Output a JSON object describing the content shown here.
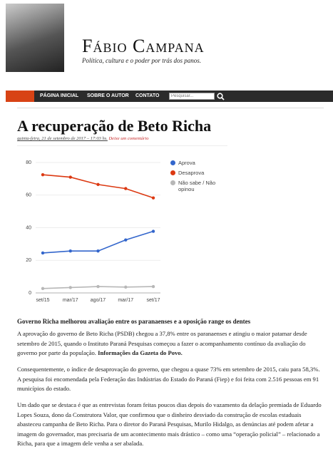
{
  "header": {
    "title": "Fábio Campana",
    "subtitle": "Política, cultura e o poder por trás dos panos."
  },
  "nav": {
    "items": [
      "PÁGINA INICIAL",
      "SOBRE O AUTOR",
      "CONTATO"
    ],
    "search_placeholder": "Pesquisar..."
  },
  "post": {
    "title": "A recuperação de Beto Richa",
    "date": "quinta-feira, 21 de setembro de 2017 – 17:03 hs.",
    "comment_link": "Deixe um comentário",
    "caption": "Governo Richa melhorou avaliação entre os paranaenses e a oposição range os dentes",
    "paragraph_1": "A aprovação do governo de Beto Richa (PSDB) chegou a 37,8% entre os paranaenses e atingiu o maior patamar desde setembro de 2015, quando o Instituto Paraná Pesquisas começou a fazer o acompanhamento contínuo da avaliação do governo por parte da população.",
    "paragraph_1_source": "Informações da Gazeta do Povo.",
    "paragraph_2": "Consequentemente, o índice de desaprovação do governo, que chegou a quase 73% em setembro de 2015, caiu para 58,3%. A pesquisa foi encomendada pela Federação das Indústrias do Estado do Paraná (Fiep) e foi feita com 2.516 pessoas em 91 municípios do estado.",
    "paragraph_3": "Um dado que se destaca é que as entrevistas foram feitas poucos dias depois do vazamento da delação premiada de Eduardo Lopes Souza, dono da Construtora Valor, que confirmou que o dinheiro desviado da construção de escolas estaduais abasteceu campanha de Beto Richa. Para o diretor do Paraná Pesquisas, Murilo Hidalgo, as denúncias até podem afetar a imagem do governador, mas precisaria de um acontecimento mais drástico – como uma “operação policial” – relacionado a Richa, para que a imagem dele venha a ser abalada."
  },
  "chart_data": {
    "type": "line",
    "categories": [
      "set/15",
      "mar/17",
      "ago/17",
      "mar/17",
      "set/17"
    ],
    "series": [
      {
        "name": "Aprova",
        "color": "#3366cc",
        "values": [
          24.5,
          25.7,
          25.7,
          32.5,
          37.8
        ]
      },
      {
        "name": "Desaprova",
        "color": "#dc3912",
        "values": [
          72.5,
          71,
          66.5,
          64,
          58.3
        ]
      },
      {
        "name": "Não sabe / Não opinou",
        "color": "#b7b7b7",
        "values": [
          2.7,
          3.3,
          3.9,
          3.6,
          3.9
        ]
      }
    ],
    "ylim": [
      0,
      80
    ],
    "yticks": [
      0,
      20,
      40,
      60,
      80
    ],
    "grid": true
  }
}
